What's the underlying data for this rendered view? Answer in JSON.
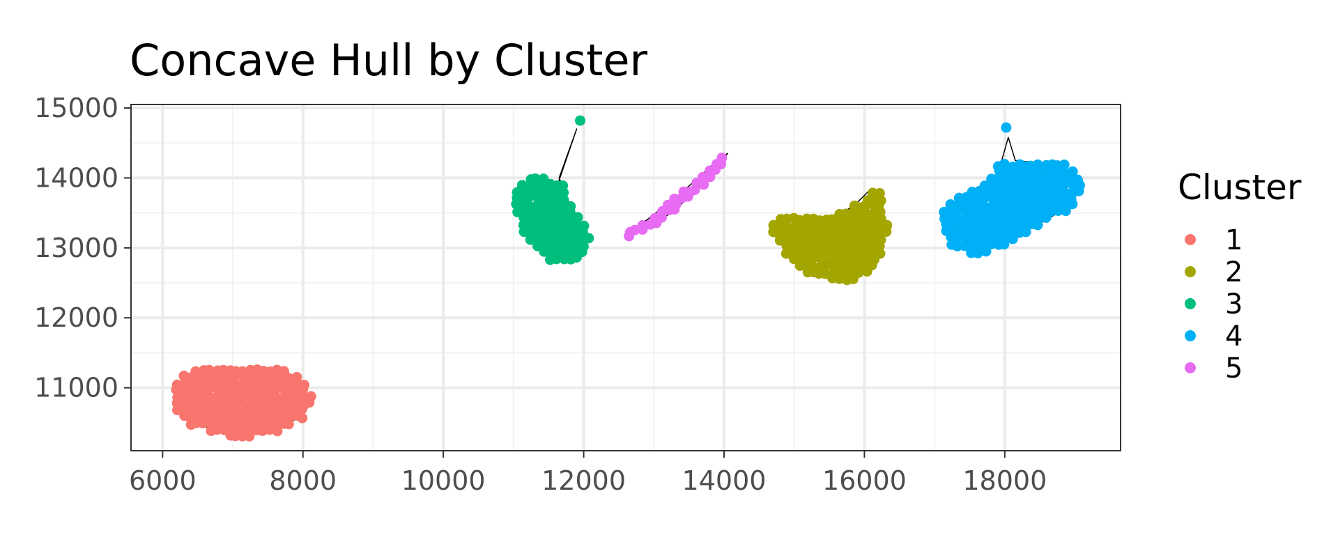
{
  "chart_data": {
    "type": "scatter",
    "title": "Concave Hull by Cluster",
    "xlabel": "",
    "ylabel": "",
    "xlim": [
      5550,
      19650
    ],
    "ylim": [
      10100,
      15050
    ],
    "x_ticks": [
      6000,
      8000,
      10000,
      12000,
      14000,
      16000,
      18000
    ],
    "y_ticks": [
      11000,
      12000,
      13000,
      14000,
      15000
    ],
    "x_tick_labels": [
      "6000",
      "8000",
      "10000",
      "12000",
      "14000",
      "16000",
      "18000"
    ],
    "y_tick_labels": [
      "11000",
      "12000",
      "13000",
      "14000",
      "15000"
    ],
    "grid": true,
    "legend_title": "Cluster",
    "legend_position": "right",
    "series": [
      {
        "name": "1",
        "color": "#F8766D",
        "cluster": {
          "x_range": [
            6200,
            8100
          ],
          "y_range": [
            10300,
            11250
          ],
          "shape": "ellipse"
        },
        "outliers": [],
        "hull": [
          [
            6250,
            10950
          ],
          [
            6300,
            11100
          ],
          [
            6550,
            11200
          ],
          [
            7000,
            11260
          ],
          [
            7500,
            11250
          ],
          [
            7900,
            11120
          ],
          [
            8050,
            10800
          ],
          [
            7900,
            10550
          ],
          [
            7600,
            10420
          ],
          [
            7300,
            10350
          ],
          [
            6900,
            10350
          ],
          [
            6500,
            10480
          ],
          [
            6300,
            10650
          ],
          [
            6250,
            10950
          ]
        ]
      },
      {
        "name": "2",
        "color": "#A3A500",
        "cluster": {
          "x_range": [
            14700,
            16350
          ],
          "y_range": [
            12550,
            13950
          ],
          "shape": "bowl"
        },
        "outliers": [],
        "hull": [
          [
            14750,
            13300
          ],
          [
            14850,
            13450
          ],
          [
            15100,
            13450
          ],
          [
            15500,
            13400
          ],
          [
            15850,
            13600
          ],
          [
            16100,
            13850
          ],
          [
            16200,
            13600
          ],
          [
            16250,
            13250
          ],
          [
            16150,
            12900
          ],
          [
            16000,
            12650
          ],
          [
            15600,
            12600
          ],
          [
            15200,
            12700
          ],
          [
            14950,
            12950
          ],
          [
            14750,
            13300
          ]
        ]
      },
      {
        "name": "3",
        "color": "#00BF7D",
        "cluster": {
          "x_range": [
            10950,
            12250
          ],
          "y_range": [
            12850,
            14050
          ],
          "shape": "blob"
        },
        "outliers": [
          [
            11950,
            14820
          ]
        ],
        "hull": [
          [
            11100,
            13800
          ],
          [
            11200,
            13950
          ],
          [
            11400,
            13980
          ],
          [
            11600,
            13820
          ],
          [
            11900,
            14700
          ],
          [
            11650,
            14000
          ],
          [
            11850,
            13500
          ],
          [
            12050,
            13200
          ],
          [
            11900,
            12900
          ],
          [
            11600,
            12850
          ],
          [
            11300,
            13050
          ],
          [
            11100,
            13400
          ],
          [
            11050,
            13650
          ],
          [
            11100,
            13800
          ]
        ]
      },
      {
        "name": "4",
        "color": "#00B0F6",
        "cluster": {
          "x_range": [
            17150,
            19050
          ],
          "y_range": [
            12850,
            14200
          ],
          "shape": "blob"
        },
        "outliers": [
          [
            18020,
            14720
          ]
        ],
        "hull": [
          [
            17150,
            13400
          ],
          [
            17300,
            13650
          ],
          [
            17650,
            13800
          ],
          [
            17900,
            14050
          ],
          [
            18050,
            14580
          ],
          [
            18150,
            14250
          ],
          [
            18450,
            14220
          ],
          [
            18850,
            14150
          ],
          [
            19000,
            13850
          ],
          [
            18850,
            13550
          ],
          [
            18500,
            13350
          ],
          [
            18100,
            13150
          ],
          [
            17700,
            12950
          ],
          [
            17350,
            13050
          ],
          [
            17150,
            13400
          ]
        ]
      },
      {
        "name": "5",
        "color": "#E76BF3",
        "cluster": {
          "x_range": [
            12550,
            14250
          ],
          "y_range": [
            13150,
            14450
          ],
          "shape": "band"
        },
        "outliers": [],
        "hull": [
          [
            12600,
            13200
          ],
          [
            12750,
            13200
          ],
          [
            13250,
            13500
          ],
          [
            13750,
            13950
          ],
          [
            14050,
            14350
          ],
          [
            13850,
            14200
          ],
          [
            13350,
            13750
          ],
          [
            12900,
            13400
          ],
          [
            12600,
            13200
          ]
        ]
      }
    ]
  }
}
